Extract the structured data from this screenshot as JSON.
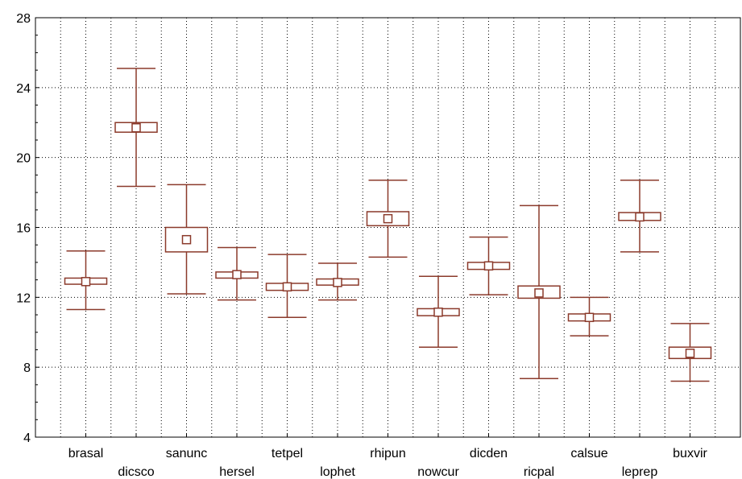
{
  "chart_data": {
    "type": "box",
    "title": "",
    "xlabel": "",
    "ylabel": "",
    "ylim": [
      4,
      28
    ],
    "yticks": [
      4,
      8,
      12,
      16,
      20,
      24,
      28
    ],
    "grid": true,
    "color": "#8b3a2b",
    "categories": [
      "brasal",
      "dicsco",
      "sanunc",
      "hersel",
      "tetpel",
      "lophet",
      "rhipun",
      "nowcur",
      "dicden",
      "ricpal",
      "calsue",
      "leprep",
      "buxvir"
    ],
    "series": [
      {
        "mean": [
          12.9,
          21.7,
          15.3,
          13.3,
          12.6,
          12.85,
          16.5,
          11.15,
          13.8,
          12.25,
          10.85,
          16.6,
          8.8
        ],
        "box_low": [
          12.75,
          21.45,
          14.6,
          13.1,
          12.4,
          12.7,
          16.1,
          10.95,
          13.6,
          11.95,
          10.65,
          16.4,
          8.5
        ],
        "box_high": [
          13.1,
          22.0,
          16.0,
          13.45,
          12.8,
          13.05,
          16.9,
          11.35,
          14.0,
          12.65,
          11.05,
          16.85,
          9.15
        ],
        "whisker_low": [
          11.3,
          18.35,
          12.2,
          11.85,
          10.85,
          11.85,
          14.3,
          9.15,
          12.15,
          7.35,
          9.8,
          14.6,
          7.2
        ],
        "whisker_high": [
          14.65,
          25.1,
          18.45,
          14.85,
          14.45,
          13.95,
          18.7,
          13.2,
          15.45,
          17.25,
          12.0,
          18.7,
          10.5
        ]
      }
    ]
  }
}
